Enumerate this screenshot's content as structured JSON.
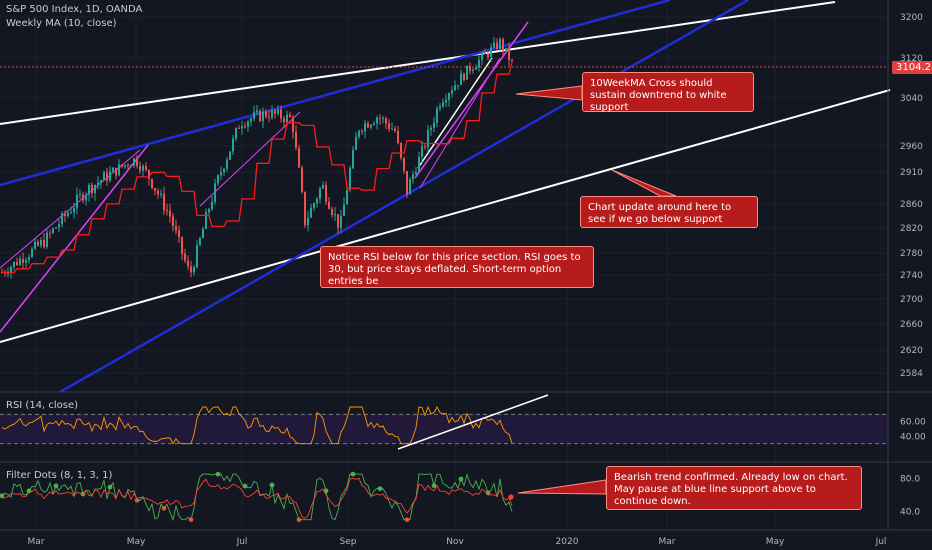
{
  "header": {
    "symbol_line": "S&P 500 Index, 1D, OANDA",
    "ma_line": "Weekly MA (10, close)"
  },
  "price_tag": "3104.2",
  "chart_data": [
    {
      "type": "candlestick",
      "title": "S&P 500 Index, 1D, OANDA",
      "yticks": [
        2584,
        2620,
        2660,
        2700,
        2740,
        2780,
        2820,
        2860,
        2910,
        2960,
        3040,
        3120,
        3200
      ],
      "ylim": [
        2540,
        3240
      ],
      "xticks": [
        "Mar",
        "May",
        "Jul",
        "Sep",
        "Nov",
        "2020",
        "Mar",
        "May",
        "Jul"
      ],
      "legend": "Weekly MA (10, close)",
      "last_price": 3104.2
    },
    {
      "type": "line",
      "title": "RSI (14, close)",
      "yticks": [
        "60.00",
        "40.00"
      ],
      "ylim": [
        20,
        80
      ]
    },
    {
      "type": "line",
      "title": "Filter Dots (8, 1, 3, 1)",
      "yticks": [
        "80.0",
        "40.0"
      ],
      "ylim": [
        20,
        90
      ]
    }
  ],
  "annotations": {
    "callout_1": "10WeekMA Cross should sustain downtrend to white support",
    "callout_2": "Chart update around here to see if we go below support",
    "callout_3": "Notice RSI below for this price section.  RSI goes to 30, but price stays deflated.  Short-term option entries be",
    "callout_4": "Bearish trend confirmed.  Already low on chart. May pause at blue line support above to continue down."
  },
  "colors": {
    "background": "#131722",
    "up": "#26a69a",
    "down": "#ef5350",
    "ma": "#ff1a1a",
    "trend_blue": "#1f2ddb",
    "trend_white": "#ffffff",
    "channel_magenta": "#e040fb",
    "rsi": "#ff9800",
    "filter_green": "#4caf50",
    "filter_red": "#f44336"
  }
}
